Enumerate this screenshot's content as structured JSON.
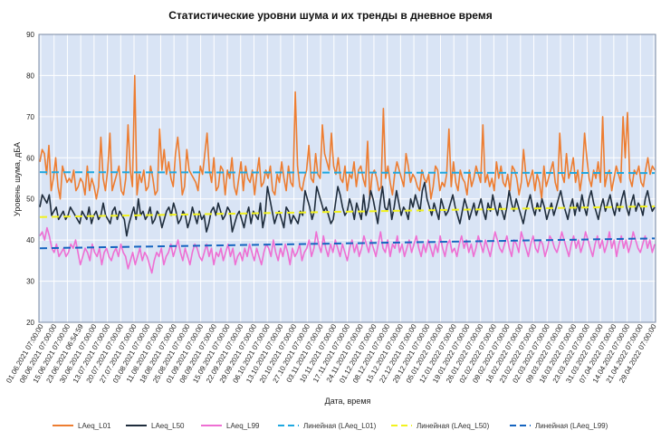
{
  "chart_data": {
    "type": "line",
    "title": "Статистические уровни шума и их тренды в дневное время",
    "xlabel": "Дата, время",
    "ylabel": "Уровень шума, дБА",
    "ylim": [
      20,
      90
    ],
    "yticks": [
      20,
      30,
      40,
      50,
      60,
      70,
      80,
      90
    ],
    "grid": true,
    "legend_position": "bottom",
    "background": "#d9e4f5",
    "x_tick_labels": [
      "01.06.2021 07:00:00",
      "08.06.2021 07:00:00",
      "15.06.2021 07:00:00",
      "23.06.2021 06:54:59",
      "30.06.2021 07:00:00",
      "13.07.2021 07:00:00",
      "20.07.2021 07:00:00",
      "27.07.2021 07:00:00",
      "03.08.2021 07:00:00",
      "11.08.2021 07:00:00",
      "18.08.2021 07:00:00",
      "25.08.2021 07:00:00",
      "01.09.2021 07:00:00",
      "08.09.2021 07:00:00",
      "15.09.2021 07:00:00",
      "22.09.2021 07:00:00",
      "29.09.2021 07:00:00",
      "06.10.2021 07:00:00",
      "13.10.2021 07:00:00",
      "20.10.2021 07:00:00",
      "27.10.2021 07:00:00",
      "03.11.2021 07:00:00",
      "10.11.2021 07:00:00",
      "17.11.2021 07:00:00",
      "24.11.2021 07:00:00",
      "01.12.2021 07:00:00",
      "08.12.2021 07:00:00",
      "15.12.2021 07:00:00",
      "22.12.2021 07:00:00",
      "29.12.2021 07:00:00",
      "05.01.2022 07:00:00",
      "12.01.2022 07:00:00",
      "19.01.2022 07:00:00",
      "26.01.2022 07:00:00",
      "02.02.2022 07:00:00",
      "09.02.2022 07:00:00",
      "16.02.2022 07:00:00",
      "23.02.2022 07:00:00",
      "02.03.2022 07:00:00",
      "09.03.2022 07:00:00",
      "16.03.2022 07:00:00",
      "23.03.2022 07:00:00",
      "31.03.2022 07:00:00",
      "07.04.2022 07:00:00",
      "14.04.2022 07:00:00",
      "21.04.2022 07:00:00",
      "29.04.2022 07:00:00"
    ],
    "series": [
      {
        "name": "LAeq_L01",
        "color": "#ed7d31",
        "style": "solid",
        "values": [
          59,
          62,
          61,
          56,
          63,
          52,
          55,
          60,
          53,
          50,
          58,
          56,
          54,
          55,
          54,
          57,
          52,
          53,
          55,
          54,
          51,
          58,
          52,
          55,
          53,
          50,
          53,
          65,
          55,
          52,
          57,
          66,
          52,
          54,
          56,
          58,
          52,
          51,
          55,
          68,
          57,
          53,
          80,
          51,
          56,
          54,
          57,
          52,
          53,
          58,
          55,
          51,
          52,
          67,
          57,
          62,
          56,
          59,
          55,
          53,
          61,
          65,
          59,
          51,
          53,
          62,
          57,
          56,
          55,
          54,
          52,
          58,
          56,
          61,
          66,
          57,
          54,
          60,
          52,
          53,
          58,
          57,
          51,
          57,
          55,
          60,
          53,
          51,
          55,
          59,
          52,
          58,
          55,
          54,
          57,
          51,
          56,
          60,
          53,
          54,
          57,
          55,
          58,
          52,
          51,
          56,
          54,
          59,
          55,
          52,
          58,
          54,
          53,
          76,
          58,
          53,
          52,
          55,
          57,
          63,
          55,
          54,
          61,
          56,
          55,
          68,
          61,
          59,
          57,
          66,
          58,
          56,
          60,
          55,
          54,
          58,
          52,
          56,
          55,
          59,
          53,
          57,
          58,
          55,
          53,
          64,
          50,
          56,
          57,
          55,
          52,
          53,
          72,
          55,
          58,
          54,
          51,
          56,
          59,
          57,
          55,
          53,
          61,
          58,
          54,
          56,
          55,
          53,
          52,
          57,
          55,
          54,
          56,
          50,
          53,
          58,
          57,
          52,
          54,
          53,
          56,
          67,
          53,
          59,
          54,
          52,
          57,
          55,
          54,
          51,
          57,
          53,
          55,
          58,
          56,
          54,
          68,
          54,
          56,
          53,
          55,
          52,
          59,
          55,
          58,
          54,
          53,
          56,
          52,
          58,
          57,
          55,
          51,
          54,
          62,
          56,
          53,
          55,
          57,
          52,
          56,
          54,
          50,
          58,
          53,
          55,
          57,
          59,
          54,
          52,
          66,
          56,
          54,
          61,
          55,
          57,
          60,
          54,
          57,
          52,
          56,
          66,
          60,
          55,
          53,
          57,
          55,
          59,
          54,
          70,
          53,
          56,
          57,
          52,
          55,
          58,
          56,
          54,
          70,
          60,
          71,
          55,
          53,
          57,
          56,
          58,
          54,
          53,
          57,
          60,
          56,
          58,
          57
        ]
      },
      {
        "name": "LAeq_L50",
        "color": "#1f2d3d",
        "style": "solid",
        "values": [
          48,
          51,
          50,
          49,
          51,
          46,
          47,
          48,
          45,
          46,
          47,
          45,
          46,
          48,
          47,
          46,
          45,
          44,
          47,
          46,
          45,
          48,
          44,
          46,
          47,
          45,
          46,
          49,
          46,
          45,
          44,
          47,
          48,
          45,
          47,
          46,
          45,
          41,
          44,
          46,
          48,
          45,
          50,
          46,
          47,
          45,
          46,
          48,
          44,
          45,
          47,
          46,
          43,
          45,
          47,
          48,
          46,
          49,
          47,
          44,
          45,
          47,
          46,
          43,
          45,
          48,
          46,
          44,
          47,
          45,
          46,
          42,
          44,
          47,
          48,
          46,
          49,
          47,
          45,
          46,
          48,
          47,
          42,
          44,
          46,
          47,
          45,
          43,
          46,
          48,
          44,
          47,
          46,
          45,
          49,
          43,
          46,
          53,
          50,
          47,
          44,
          46,
          47,
          45,
          43,
          48,
          47,
          44,
          46,
          45,
          44,
          47,
          46,
          52,
          50,
          48,
          45,
          47,
          53,
          51,
          49,
          47,
          48,
          46,
          44,
          45,
          49,
          53,
          51,
          48,
          46,
          47,
          50,
          48,
          45,
          49,
          47,
          45,
          51,
          46,
          48,
          52,
          50,
          47,
          44,
          49,
          53,
          48,
          47,
          50,
          45,
          48,
          52,
          49,
          46,
          48,
          47,
          45,
          50,
          48,
          51,
          49,
          47,
          52,
          54,
          50,
          48,
          46,
          49,
          47,
          45,
          50,
          48,
          46,
          47,
          49,
          51,
          48,
          46,
          44,
          47,
          50,
          48,
          45,
          47,
          49,
          46,
          48,
          50,
          47,
          45,
          49,
          47,
          51,
          48,
          46,
          49,
          47,
          45,
          48,
          52,
          49,
          47,
          50,
          48,
          46,
          44,
          47,
          49,
          51,
          48,
          46,
          49,
          47,
          50,
          48,
          45,
          47,
          49,
          46,
          48,
          50,
          52,
          49,
          47,
          45,
          48,
          50,
          46,
          49,
          47,
          51,
          48,
          46,
          50,
          52,
          49,
          47,
          45,
          48,
          50,
          47,
          49,
          51,
          48,
          46,
          49,
          47,
          50,
          52,
          48,
          46,
          49,
          51,
          47,
          49,
          48,
          46,
          50,
          52,
          49,
          47,
          48
        ]
      },
      {
        "name": "LAeq_L99",
        "color": "#ee6fd3",
        "style": "solid",
        "values": [
          41,
          42,
          40,
          43,
          41,
          38,
          37,
          39,
          36,
          37,
          38,
          36,
          37,
          39,
          38,
          40,
          37,
          34,
          36,
          38,
          37,
          35,
          39,
          37,
          36,
          38,
          34,
          37,
          38,
          36,
          35,
          37,
          38,
          36,
          39,
          37,
          36,
          33,
          35,
          37,
          34,
          36,
          38,
          35,
          37,
          36,
          34,
          32,
          35,
          37,
          36,
          38,
          34,
          36,
          37,
          39,
          36,
          38,
          40,
          37,
          35,
          38,
          36,
          34,
          37,
          39,
          38,
          36,
          35,
          37,
          39,
          36,
          38,
          34,
          37,
          36,
          38,
          35,
          37,
          39,
          36,
          38,
          34,
          36,
          37,
          35,
          38,
          36,
          39,
          37,
          35,
          38,
          36,
          34,
          37,
          39,
          38,
          36,
          40,
          37,
          35,
          38,
          36,
          39,
          37,
          34,
          38,
          36,
          37,
          39,
          35,
          37,
          38,
          40,
          36,
          38,
          42,
          39,
          37,
          41,
          38,
          36,
          39,
          37,
          40,
          38,
          36,
          39,
          37,
          35,
          38,
          40,
          37,
          39,
          36,
          38,
          41,
          39,
          37,
          40,
          38,
          36,
          39,
          42,
          38,
          37,
          40,
          36,
          39,
          38,
          41,
          37,
          39,
          36,
          38,
          40,
          37,
          39,
          41,
          38,
          36,
          39,
          37,
          40,
          38,
          36,
          39,
          37,
          41,
          38,
          36,
          39,
          40,
          37,
          38,
          36,
          39,
          41,
          38,
          40,
          37,
          39,
          36,
          38,
          41,
          39,
          37,
          40,
          38,
          36,
          39,
          42,
          40,
          38,
          37,
          39,
          41,
          38,
          36,
          40,
          39,
          37,
          42,
          40,
          38,
          36,
          39,
          41,
          38,
          37,
          40,
          39,
          36,
          38,
          41,
          40,
          38,
          37,
          39,
          42,
          40,
          38,
          36,
          39,
          41,
          38,
          40,
          37,
          39,
          42,
          40,
          38,
          36,
          39,
          41,
          38,
          40,
          37,
          39,
          42,
          38,
          40,
          36,
          39,
          41,
          38,
          40,
          37,
          39,
          42,
          40,
          38,
          37,
          39,
          41,
          38,
          40,
          37,
          39
        ]
      },
      {
        "name": "Линейная (LAeq_L01)",
        "color": "#1fa8e0",
        "style": "dashed",
        "trend": [
          56.5,
          56.3
        ]
      },
      {
        "name": "Линейная (LAeq_L50)",
        "color": "#f2f21e",
        "style": "dashed",
        "trend": [
          45.6,
          48.2
        ]
      },
      {
        "name": "Линейная (LAeq_L99)",
        "color": "#1565c0",
        "style": "dashed",
        "trend": [
          38.0,
          40.4
        ]
      }
    ]
  }
}
